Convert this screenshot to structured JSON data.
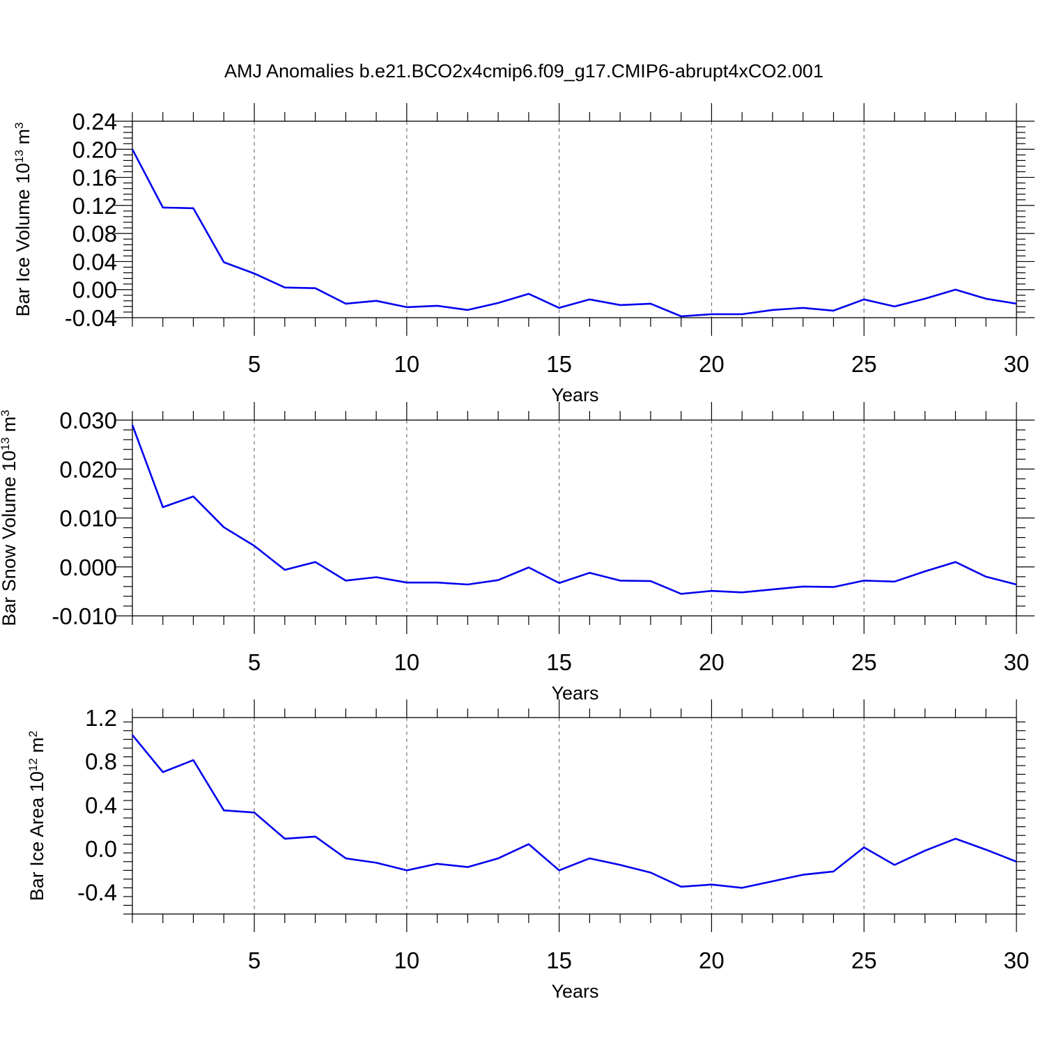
{
  "title": "AMJ Anomalies b.e21.BCO2x4cmip6.f09_g17.CMIP6-abrupt4xCO2.001",
  "line_color": "#0000ee",
  "chart_data": [
    {
      "type": "line",
      "xlabel": "Years",
      "ylabel_base": "Bar Ice Volume 10",
      "ylabel_exp": "13",
      "ylabel_unit": " m",
      "ylabel_unit_exp": "3",
      "xlim": [
        1,
        30
      ],
      "ylim": [
        -0.04,
        0.24
      ],
      "yticks": [
        "-0.04",
        "0.00",
        "0.04",
        "0.08",
        "0.12",
        "0.16",
        "0.20",
        "0.24"
      ],
      "xticks": [
        "5",
        "10",
        "15",
        "20",
        "25",
        "30"
      ],
      "x": [
        1,
        2,
        3,
        4,
        5,
        6,
        7,
        8,
        9,
        10,
        11,
        12,
        13,
        14,
        15,
        16,
        17,
        18,
        19,
        20,
        21,
        22,
        23,
        24,
        25,
        26,
        27,
        28,
        29,
        30
      ],
      "values": [
        0.2,
        0.117,
        0.116,
        0.039,
        0.023,
        0.003,
        0.002,
        -0.02,
        -0.016,
        -0.025,
        -0.023,
        -0.029,
        -0.019,
        -0.006,
        -0.026,
        -0.014,
        -0.022,
        -0.02,
        -0.038,
        -0.035,
        -0.035,
        -0.029,
        -0.026,
        -0.03,
        -0.014,
        -0.024,
        -0.013,
        0.0,
        -0.013,
        -0.02
      ],
      "grid": "dashed vertical at major x ticks"
    },
    {
      "type": "line",
      "xlabel": "Years",
      "ylabel_base": "Bar Snow Volume 10",
      "ylabel_exp": "13",
      "ylabel_unit": " m",
      "ylabel_unit_exp": "3",
      "xlim": [
        1,
        30
      ],
      "ylim": [
        -0.01,
        0.03
      ],
      "yticks": [
        "-0.010",
        "0.000",
        "0.010",
        "0.020",
        "0.030"
      ],
      "xticks": [
        "5",
        "10",
        "15",
        "20",
        "25",
        "30"
      ],
      "x": [
        1,
        2,
        3,
        4,
        5,
        6,
        7,
        8,
        9,
        10,
        11,
        12,
        13,
        14,
        15,
        16,
        17,
        18,
        19,
        20,
        21,
        22,
        23,
        24,
        25,
        26,
        27,
        28,
        29,
        30
      ],
      "values": [
        0.029,
        0.0122,
        0.0144,
        0.0081,
        0.0043,
        -0.0006,
        0.001,
        -0.0028,
        -0.0021,
        -0.0032,
        -0.0032,
        -0.0036,
        -0.0027,
        -0.0001,
        -0.0033,
        -0.0012,
        -0.0028,
        -0.0029,
        -0.0055,
        -0.0049,
        -0.0052,
        -0.0046,
        -0.004,
        -0.0041,
        -0.0028,
        -0.003,
        -0.0009,
        0.001,
        -0.002,
        -0.0036
      ],
      "grid": "dashed vertical at major x ticks"
    },
    {
      "type": "line",
      "xlabel": "Years",
      "ylabel_base": "Bar Ice Area 10",
      "ylabel_exp": "12",
      "ylabel_unit": " m",
      "ylabel_unit_exp": "2",
      "xlim": [
        1,
        30
      ],
      "ylim": [
        -0.6,
        1.2
      ],
      "yticks": [
        "-0.4",
        "0.0",
        "0.4",
        "0.8",
        "1.2"
      ],
      "xticks": [
        "5",
        "10",
        "15",
        "20",
        "25",
        "30"
      ],
      "x": [
        1,
        2,
        3,
        4,
        5,
        6,
        7,
        8,
        9,
        10,
        11,
        12,
        13,
        14,
        15,
        16,
        17,
        18,
        19,
        20,
        21,
        22,
        23,
        24,
        25,
        26,
        27,
        28,
        29,
        30
      ],
      "values": [
        1.04,
        0.7,
        0.81,
        0.35,
        0.33,
        0.09,
        0.11,
        -0.09,
        -0.13,
        -0.2,
        -0.14,
        -0.17,
        -0.09,
        0.04,
        -0.2,
        -0.09,
        -0.15,
        -0.22,
        -0.35,
        -0.33,
        -0.36,
        -0.3,
        -0.24,
        -0.21,
        0.01,
        -0.15,
        -0.02,
        0.09,
        -0.01,
        -0.12
      ],
      "grid": "dashed vertical at major x ticks"
    }
  ]
}
